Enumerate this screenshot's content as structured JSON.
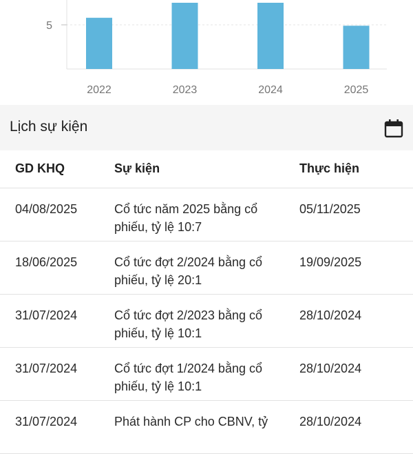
{
  "chart_data": {
    "type": "bar",
    "categories": [
      "2022",
      "2023",
      "2024",
      "2025"
    ],
    "values": [
      5.8,
      7.5,
      7.5,
      4.9
    ],
    "ytick_labels": [
      "5"
    ],
    "bar_color": "#5eb5dc"
  },
  "events": {
    "title": "Lịch sự kiện",
    "calendar_icon": "calendar-icon",
    "columns": [
      "GD KHQ",
      "Sự kiện",
      "Thực hiện"
    ],
    "rows": [
      {
        "date": "04/08/2025",
        "event": "Cổ tức năm 2025 bằng cổ phiếu, tỷ lệ 10:7",
        "exec": "05/11/2025"
      },
      {
        "date": "18/06/2025",
        "event": "Cổ tức đợt 2/2024 bằng cổ phiếu, tỷ lệ 20:1",
        "exec": "19/09/2025"
      },
      {
        "date": "31/07/2024",
        "event": "Cổ tức đợt 2/2023 bằng cổ phiếu, tỷ lệ 10:1",
        "exec": "28/10/2024"
      },
      {
        "date": "31/07/2024",
        "event": "Cổ tức đợt 1/2024 bằng cổ phiếu, tỷ lệ 10:1",
        "exec": "28/10/2024"
      },
      {
        "date": "31/07/2024",
        "event": "Phát hành CP cho CBNV, tỷ",
        "exec": "28/10/2024"
      }
    ]
  }
}
